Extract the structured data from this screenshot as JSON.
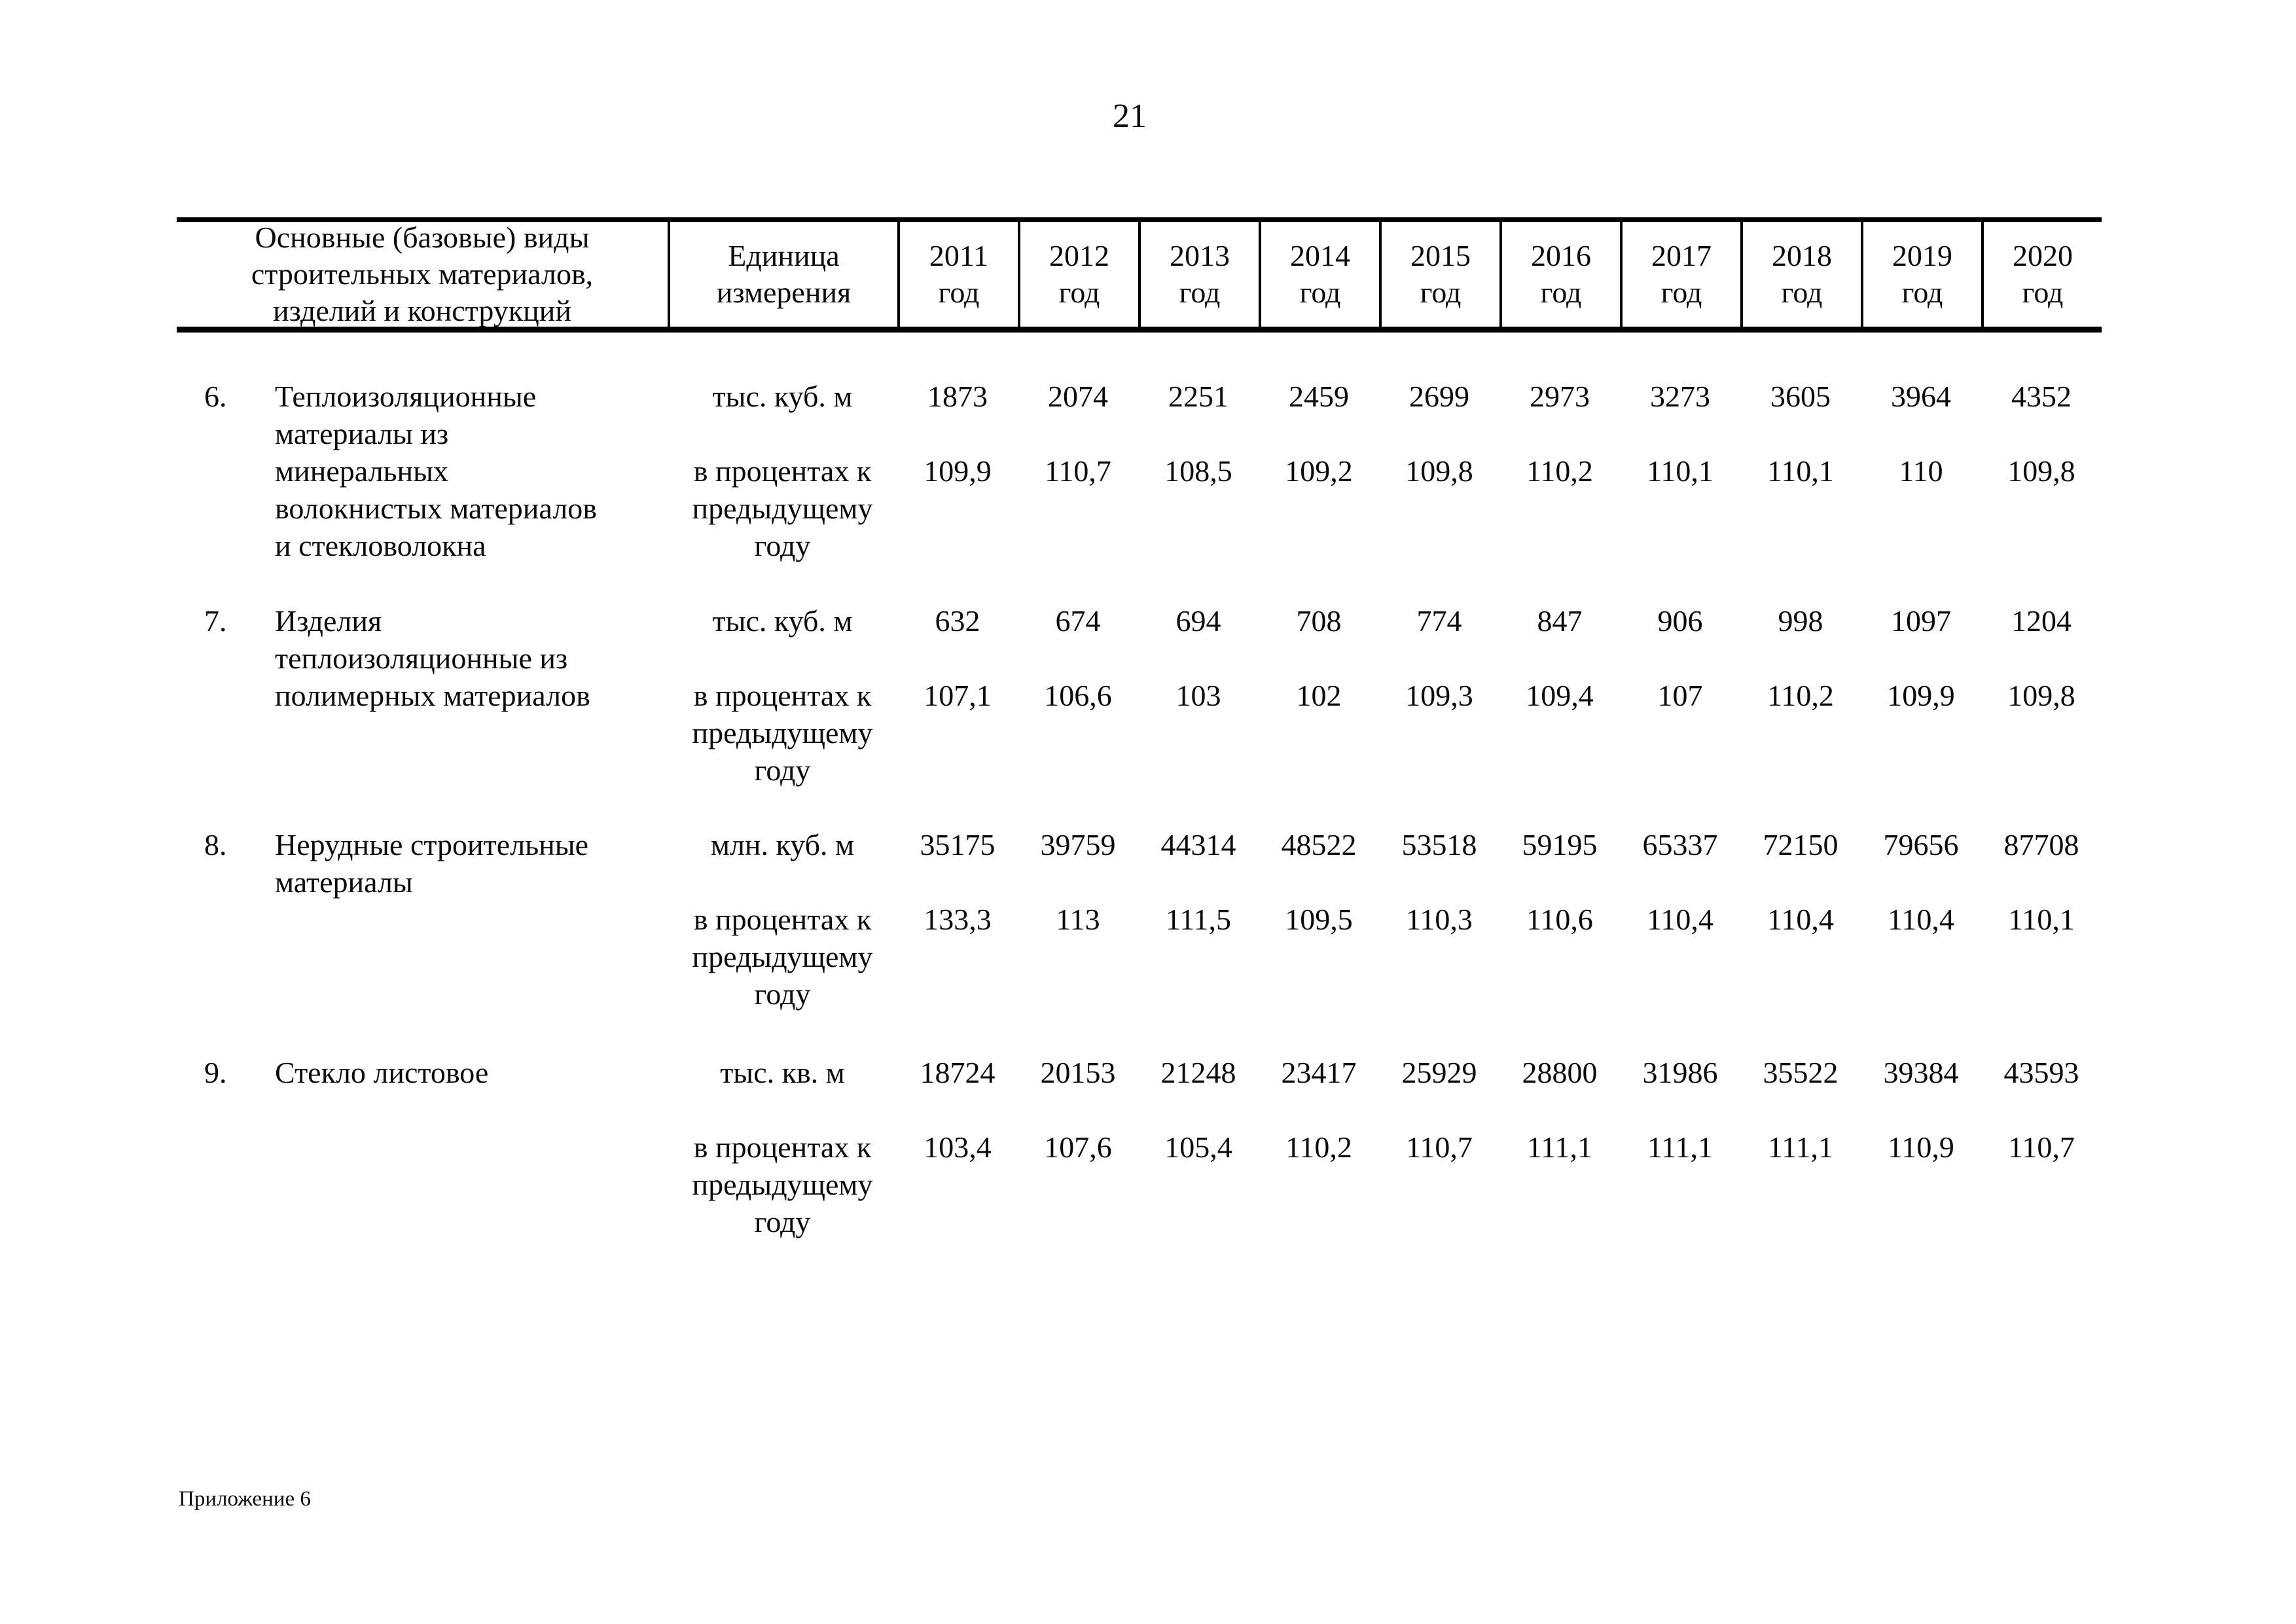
{
  "page": {
    "number": "21",
    "footnote": "Приложение 6"
  },
  "table": {
    "header": {
      "name_lines": [
        "Основные (базовые) виды",
        "строительных материалов,",
        "изделий и конструкций"
      ],
      "unit_lines": [
        "Единица",
        "измерения"
      ],
      "years": [
        "2011",
        "2012",
        "2013",
        "2014",
        "2015",
        "2016",
        "2017",
        "2018",
        "2019",
        "2020"
      ],
      "year_suffix": "год"
    },
    "rows": [
      {
        "num": "6.",
        "name_lines": [
          "Теплоизоляционные",
          "материалы из",
          "минеральных",
          "волокнистых материалов",
          "и стекловолокна"
        ],
        "unit_primary": "тыс. куб. м",
        "unit_secondary_lines": [
          "в процентах к",
          "предыдущему",
          "году"
        ],
        "values": [
          "1873",
          "2074",
          "2251",
          "2459",
          "2699",
          "2973",
          "3273",
          "3605",
          "3964",
          "4352"
        ],
        "percents": [
          "109,9",
          "110,7",
          "108,5",
          "109,2",
          "109,8",
          "110,2",
          "110,1",
          "110,1",
          "110",
          "109,8"
        ]
      },
      {
        "num": "7.",
        "name_lines": [
          "Изделия",
          "теплоизоляционные из",
          "полимерных материалов"
        ],
        "unit_primary": "тыс. куб. м",
        "unit_secondary_lines": [
          "в процентах к",
          "предыдущему",
          "году"
        ],
        "values": [
          "632",
          "674",
          "694",
          "708",
          "774",
          "847",
          "906",
          "998",
          "1097",
          "1204"
        ],
        "percents": [
          "107,1",
          "106,6",
          "103",
          "102",
          "109,3",
          "109,4",
          "107",
          "110,2",
          "109,9",
          "109,8"
        ]
      },
      {
        "num": "8.",
        "name_lines": [
          "Нерудные строительные",
          "материалы"
        ],
        "unit_primary": "млн. куб. м",
        "unit_secondary_lines": [
          "в процентах к",
          "предыдущему",
          "году"
        ],
        "values": [
          "35175",
          "39759",
          "44314",
          "48522",
          "53518",
          "59195",
          "65337",
          "72150",
          "79656",
          "87708"
        ],
        "percents": [
          "133,3",
          "113",
          "111,5",
          "109,5",
          "110,3",
          "110,6",
          "110,4",
          "110,4",
          "110,4",
          "110,1"
        ]
      },
      {
        "num": "9.",
        "name_lines": [
          "Стекло листовое"
        ],
        "unit_primary": "тыс. кв. м",
        "unit_secondary_lines": [
          "в процентах к",
          "предыдущему",
          "году"
        ],
        "values": [
          "18724",
          "20153",
          "21248",
          "23417",
          "25929",
          "28800",
          "31986",
          "35522",
          "39384",
          "43593"
        ],
        "percents": [
          "103,4",
          "107,6",
          "105,4",
          "110,2",
          "110,7",
          "111,1",
          "111,1",
          "111,1",
          "110,9",
          "110,7"
        ]
      }
    ]
  }
}
